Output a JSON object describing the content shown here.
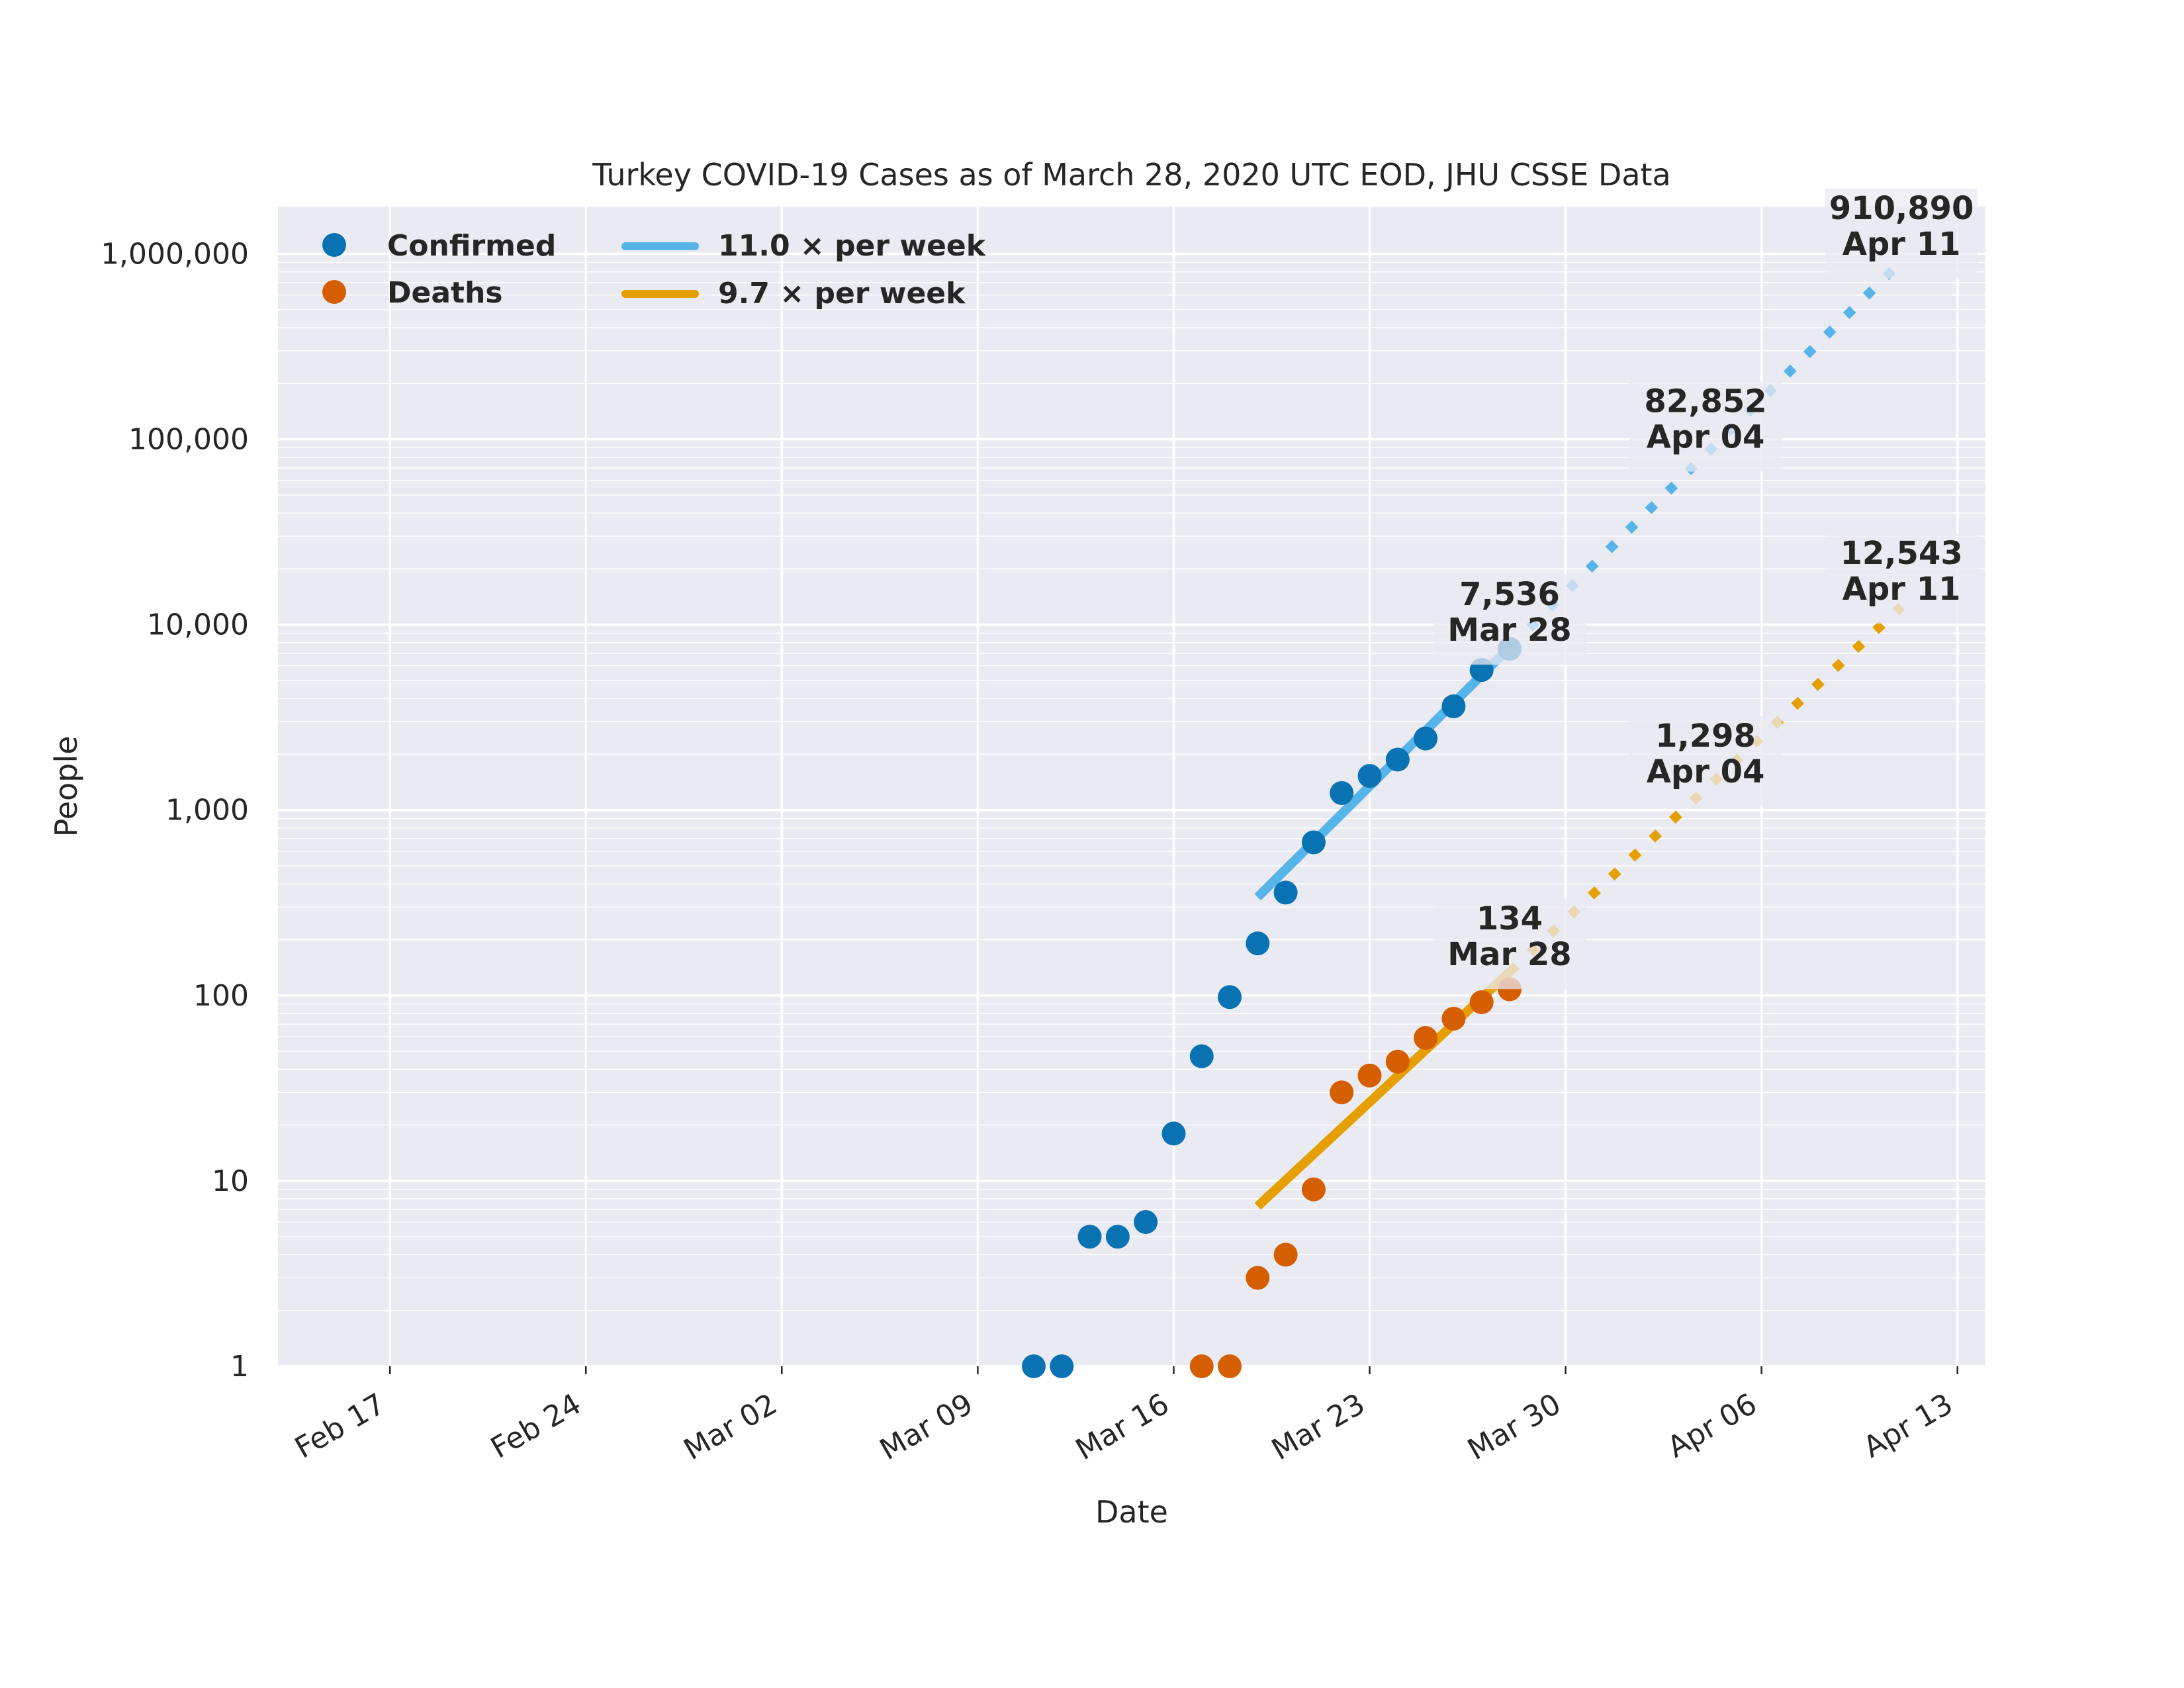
{
  "chart_data": {
    "type": "scatter",
    "title": "Turkey COVID-19 Cases as of March 28, 2020 UTC EOD, JHU CSSE Data",
    "xlabel": "Date",
    "ylabel": "People",
    "yscale": "log",
    "ylim": [
      1,
      1800000
    ],
    "xlim": [
      "2020-02-13",
      "2020-04-14"
    ],
    "grid": true,
    "legend_position": "top-left",
    "x_ticks": [
      {
        "date": "2020-02-17",
        "label": "Feb 17"
      },
      {
        "date": "2020-02-24",
        "label": "Feb 24"
      },
      {
        "date": "2020-03-02",
        "label": "Mar 02"
      },
      {
        "date": "2020-03-09",
        "label": "Mar 09"
      },
      {
        "date": "2020-03-16",
        "label": "Mar 16"
      },
      {
        "date": "2020-03-23",
        "label": "Mar 23"
      },
      {
        "date": "2020-03-30",
        "label": "Mar 30"
      },
      {
        "date": "2020-04-06",
        "label": "Apr 06"
      },
      {
        "date": "2020-04-13",
        "label": "Apr 13"
      }
    ],
    "y_ticks": [
      {
        "value": 1,
        "label": "1"
      },
      {
        "value": 10,
        "label": "10"
      },
      {
        "value": 100,
        "label": "100"
      },
      {
        "value": 1000,
        "label": "1,000"
      },
      {
        "value": 10000,
        "label": "10,000"
      },
      {
        "value": 100000,
        "label": "100,000"
      },
      {
        "value": 1000000,
        "label": "1,000,000"
      }
    ],
    "series": [
      {
        "name": "Confirmed",
        "color": "#0872b2",
        "points": [
          {
            "x": "2020-03-11",
            "y": 1
          },
          {
            "x": "2020-03-12",
            "y": 1
          },
          {
            "x": "2020-03-13",
            "y": 5
          },
          {
            "x": "2020-03-14",
            "y": 5
          },
          {
            "x": "2020-03-15",
            "y": 6
          },
          {
            "x": "2020-03-16",
            "y": 18
          },
          {
            "x": "2020-03-17",
            "y": 47
          },
          {
            "x": "2020-03-18",
            "y": 98
          },
          {
            "x": "2020-03-19",
            "y": 191
          },
          {
            "x": "2020-03-20",
            "y": 359
          },
          {
            "x": "2020-03-21",
            "y": 670
          },
          {
            "x": "2020-03-22",
            "y": 1236
          },
          {
            "x": "2020-03-23",
            "y": 1529
          },
          {
            "x": "2020-03-24",
            "y": 1872
          },
          {
            "x": "2020-03-25",
            "y": 2433
          },
          {
            "x": "2020-03-26",
            "y": 3629
          },
          {
            "x": "2020-03-27",
            "y": 5698
          },
          {
            "x": "2020-03-28",
            "y": 7402
          }
        ]
      },
      {
        "name": "Deaths",
        "color": "#d55e00",
        "points": [
          {
            "x": "2020-03-17",
            "y": 1
          },
          {
            "x": "2020-03-18",
            "y": 1
          },
          {
            "x": "2020-03-19",
            "y": 3
          },
          {
            "x": "2020-03-20",
            "y": 4
          },
          {
            "x": "2020-03-21",
            "y": 9
          },
          {
            "x": "2020-03-22",
            "y": 30
          },
          {
            "x": "2020-03-23",
            "y": 37
          },
          {
            "x": "2020-03-24",
            "y": 44
          },
          {
            "x": "2020-03-25",
            "y": 59
          },
          {
            "x": "2020-03-26",
            "y": 75
          },
          {
            "x": "2020-03-27",
            "y": 92
          },
          {
            "x": "2020-03-28",
            "y": 108
          }
        ]
      }
    ],
    "fits": [
      {
        "name": "11.0 × per week",
        "color": "#56b4e9",
        "fit_segment": [
          {
            "x": "2020-03-19",
            "y": 339
          },
          {
            "x": "2020-03-28",
            "y": 7536
          }
        ],
        "projection_segment": [
          {
            "x": "2020-03-28",
            "y": 7536
          },
          {
            "x": "2020-04-11",
            "y": 910890
          }
        ]
      },
      {
        "name": "9.7 × per week",
        "color": "#e69f00",
        "fit_segment": [
          {
            "x": "2020-03-19",
            "y": 7.3
          },
          {
            "x": "2020-03-28",
            "y": 134
          }
        ],
        "projection_segment": [
          {
            "x": "2020-03-28",
            "y": 134
          },
          {
            "x": "2020-04-11",
            "y": 12543
          }
        ]
      }
    ],
    "annotations": [
      {
        "x": "2020-03-28",
        "y": 7536,
        "value_label": "7,536",
        "date_label": "Mar 28",
        "series": "Confirmed"
      },
      {
        "x": "2020-04-04",
        "y": 82852,
        "value_label": "82,852",
        "date_label": "Apr 04",
        "series": "Confirmed"
      },
      {
        "x": "2020-04-11",
        "y": 910890,
        "value_label": "910,890",
        "date_label": "Apr 11",
        "series": "Confirmed"
      },
      {
        "x": "2020-03-28",
        "y": 134,
        "value_label": "134",
        "date_label": "Mar 28",
        "series": "Deaths"
      },
      {
        "x": "2020-04-04",
        "y": 1298,
        "value_label": "1,298",
        "date_label": "Apr 04",
        "series": "Deaths"
      },
      {
        "x": "2020-04-11",
        "y": 12543,
        "value_label": "12,543",
        "date_label": "Apr 11",
        "series": "Deaths"
      }
    ],
    "legend": [
      {
        "label": "Confirmed",
        "marker": "dot",
        "color": "#0872b2"
      },
      {
        "label": "Deaths",
        "marker": "dot",
        "color": "#d55e00"
      },
      {
        "label": "11.0 × per week",
        "marker": "line",
        "color": "#56b4e9"
      },
      {
        "label": "9.7 × per week",
        "marker": "line",
        "color": "#e69f00"
      }
    ]
  }
}
